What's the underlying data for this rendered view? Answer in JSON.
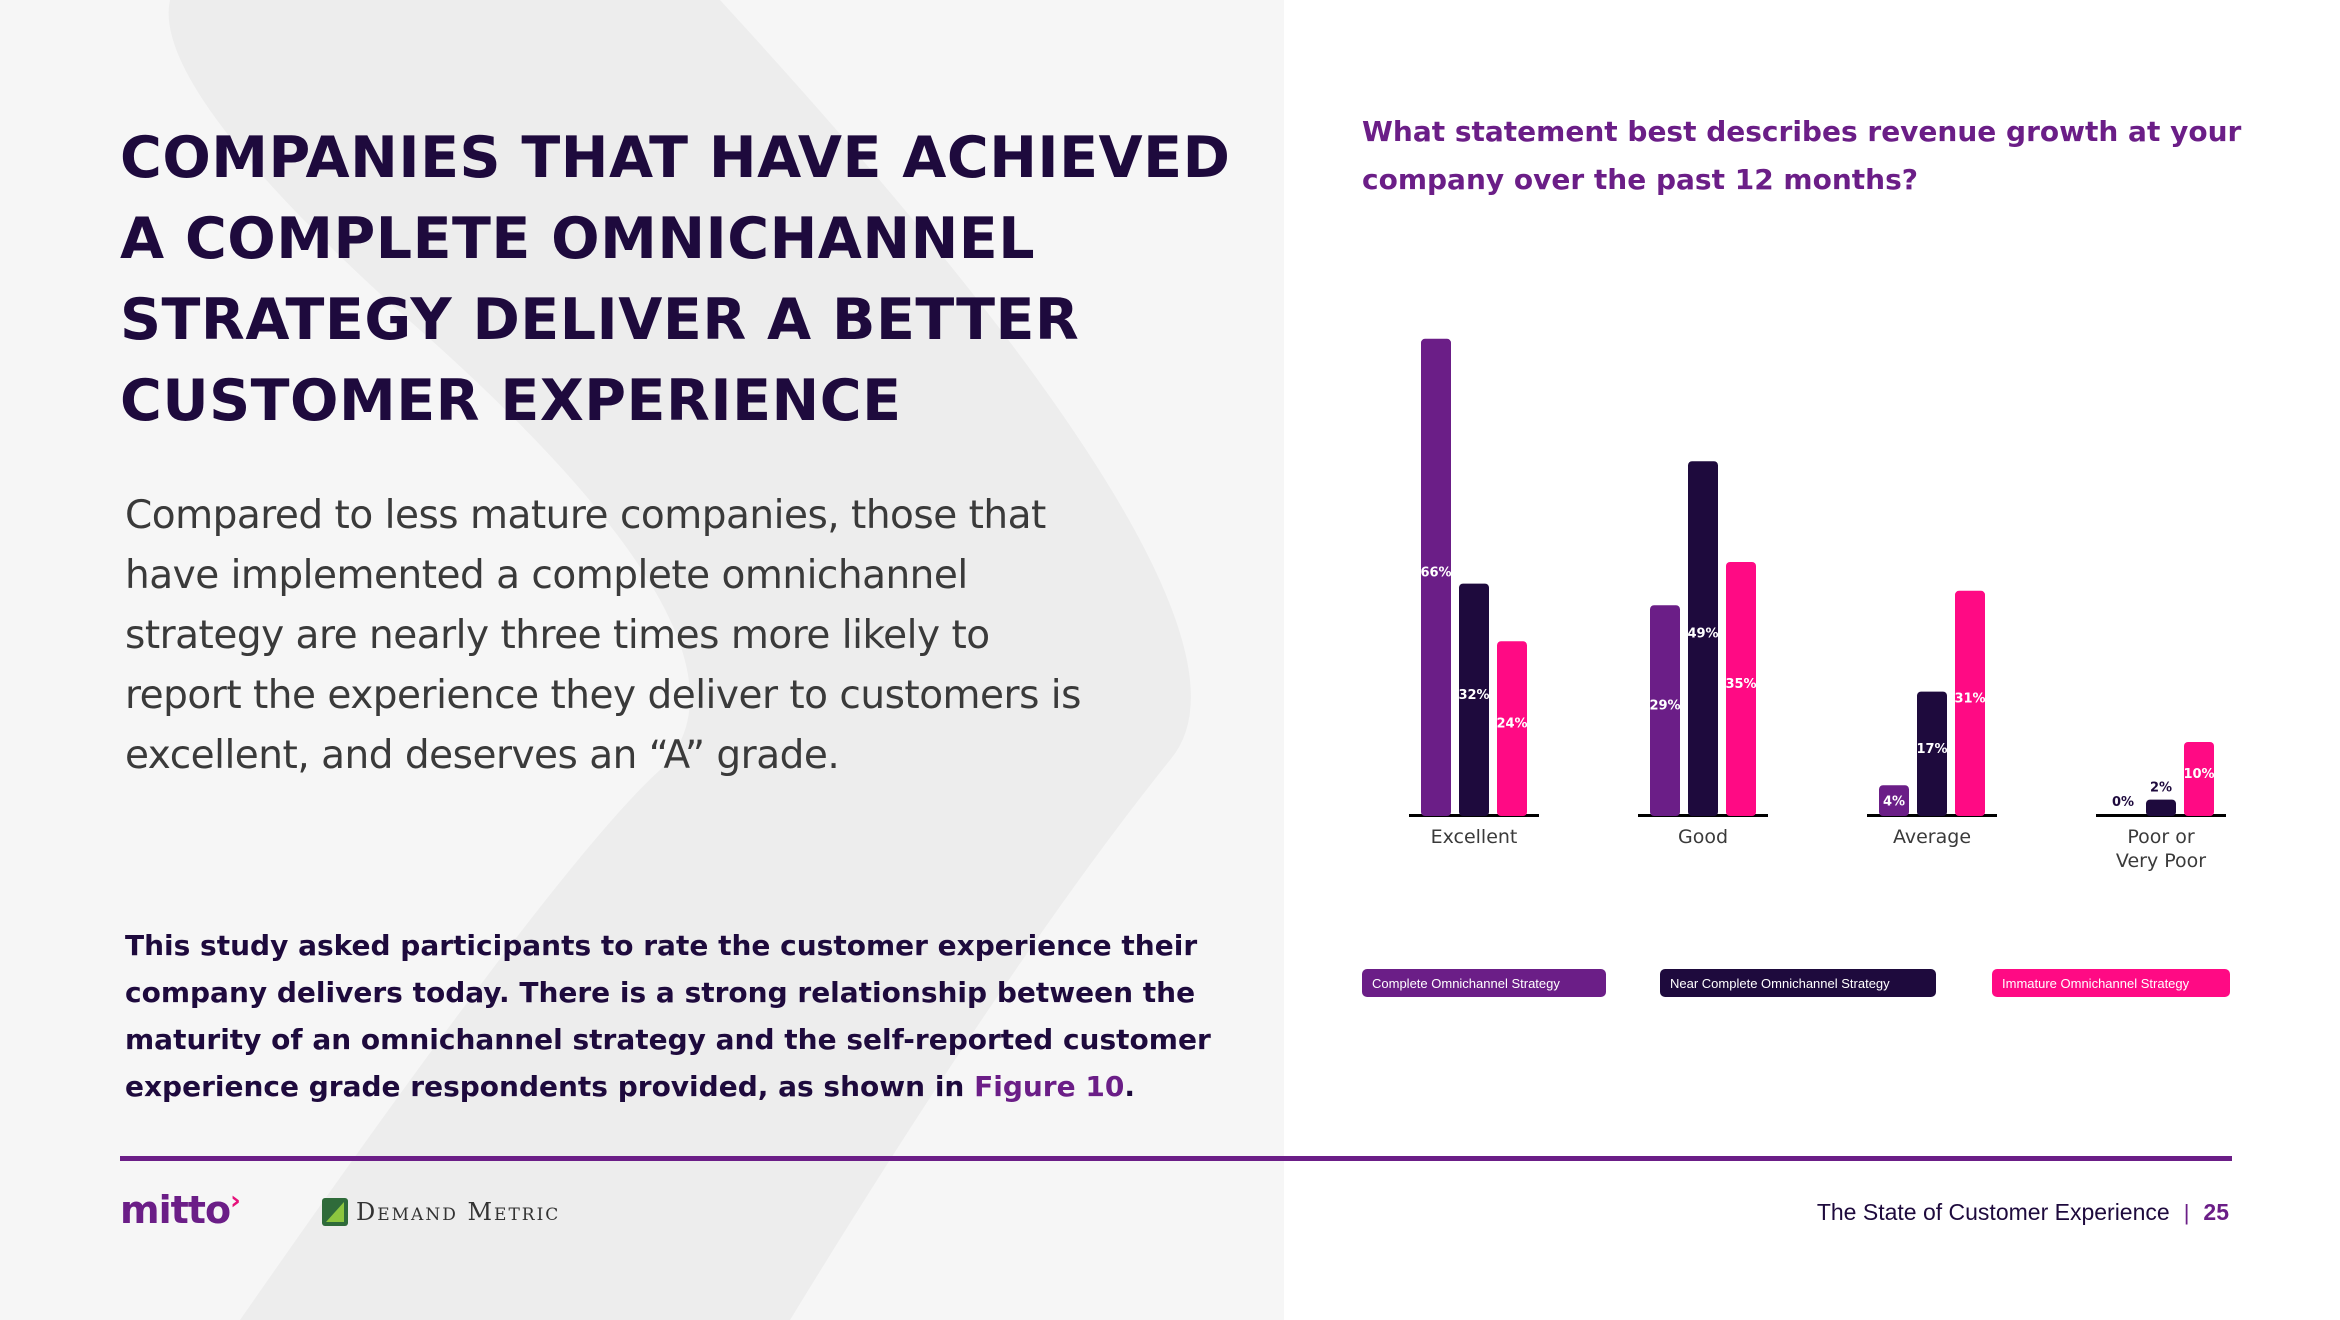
{
  "headline": [
    "COMPANIES THAT HAVE ACHIEVED",
    "A COMPLETE OMNICHANNEL",
    "STRATEGY DELIVER A BETTER",
    "CUSTOMER EXPERIENCE"
  ],
  "body_text": [
    "Compared to less mature companies, those that",
    "have implemented a complete omnichannel",
    "strategy are nearly three times more likely to",
    "report the experience they deliver to customers is",
    "excellent, and deserves an “A” grade."
  ],
  "study_text": {
    "lines": [
      "This study asked participants to rate the customer experience their",
      "company delivers today. There is a strong relationship between the",
      "maturity of an omnichannel strategy and the self-reported customer"
    ],
    "last_line_prefix": "experience grade respondents provided, as shown in ",
    "figure_link": "Figure 10",
    "last_line_suffix": "."
  },
  "footer": {
    "mitto_logo": "mitto",
    "demand_metric_logo": "Demand Metric",
    "report_title": "The State of Customer Experience",
    "separator": "|",
    "page_number": "25"
  },
  "colors": {
    "complete": "#6b1e87",
    "near_complete": "#1e0a3d",
    "immature": "#ff0a84",
    "accent": "#6b1e87"
  },
  "chart_data": {
    "type": "bar",
    "title_lines": [
      "What statement best describes revenue growth at your",
      "company over the past 12 months?"
    ],
    "categories": [
      "Excellent",
      "Good",
      "Average",
      "Poor or\nVery Poor"
    ],
    "series": [
      {
        "name": "Complete Omnichannel Strategy",
        "values": [
          66,
          29,
          4,
          0
        ]
      },
      {
        "name": "Near Complete Omnichannel Strategy",
        "values": [
          32,
          49,
          17,
          2
        ]
      },
      {
        "name": "Immature Omnichannel Strategy",
        "values": [
          24,
          35,
          31,
          10
        ]
      }
    ],
    "value_suffix": "%",
    "ylim": [
      0,
      70
    ],
    "legend_position": "bottom",
    "grid": false
  }
}
